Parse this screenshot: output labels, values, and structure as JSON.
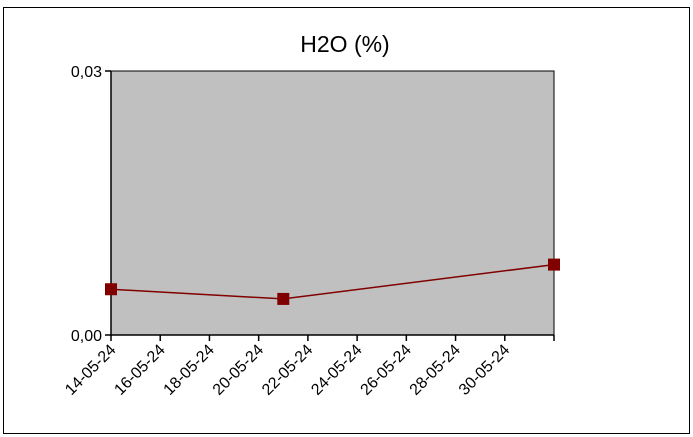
{
  "chart_data": {
    "type": "line",
    "title": "H2O (%)",
    "xlabel": "",
    "ylabel": "",
    "x_tick_labels": [
      "14-05-24",
      "16-05-24",
      "18-05-24",
      "20-05-24",
      "22-05-24",
      "24-05-24",
      "26-05-24",
      "28-05-24",
      "30-05-24"
    ],
    "y_tick_labels": [
      "0,00",
      "0,03"
    ],
    "xlim": [
      "2024-05-14",
      "2024-06-01"
    ],
    "ylim": [
      0,
      0.03
    ],
    "grid": false,
    "legend": "none",
    "series": [
      {
        "x": [
          "2024-05-14",
          "2024-05-21",
          "2024-06-01"
        ],
        "y": [
          0.0052,
          0.0041,
          0.008
        ],
        "line_color": "#800000",
        "marker": "square",
        "marker_color": "#800000"
      }
    ],
    "colors": {
      "plot_background": "#c0c0c0",
      "page_background": "#ffffff",
      "axis_color": "#000000"
    }
  }
}
